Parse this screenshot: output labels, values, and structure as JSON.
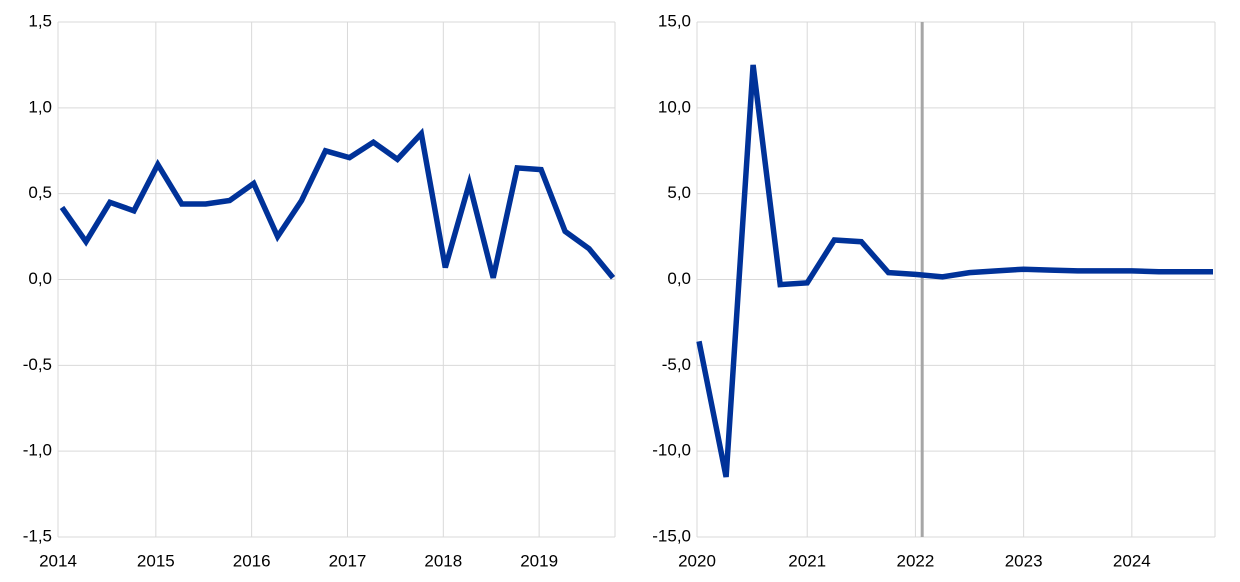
{
  "chart_data": [
    {
      "type": "line",
      "categories": [
        "2014",
        null,
        null,
        null,
        "2015",
        null,
        null,
        null,
        "2016",
        null,
        null,
        null,
        "2017",
        null,
        null,
        null,
        "2018",
        null,
        null,
        null,
        "2019",
        null,
        null,
        null
      ],
      "series": [
        {
          "color": "#003299",
          "values": [
            0.42,
            0.22,
            0.45,
            0.4,
            0.67,
            0.44,
            0.44,
            0.46,
            0.56,
            0.25,
            0.46,
            0.75,
            0.71,
            0.8,
            0.7,
            0.85,
            0.07,
            0.56,
            0.01,
            0.65,
            0.64,
            0.28,
            0.18,
            0.01
          ]
        }
      ],
      "ylim": [
        -1.5,
        1.5
      ],
      "yticks": [
        {
          "value": -1.5,
          "label": "-1,5"
        },
        {
          "value": -1.0,
          "label": "-1,0"
        },
        {
          "value": -0.5,
          "label": "-0,5"
        },
        {
          "value": 0,
          "label": "0,0"
        },
        {
          "value": 0.5,
          "label": "0,5"
        },
        {
          "value": 1.0,
          "label": "1,0"
        },
        {
          "value": 1.5,
          "label": "1,5"
        }
      ],
      "grid": true
    },
    {
      "type": "line",
      "categories": [
        "2020",
        null,
        null,
        null,
        "2021",
        null,
        null,
        null,
        "2022",
        null,
        null,
        null,
        "2023",
        null,
        null,
        null,
        "2024",
        null,
        null,
        null
      ],
      "series": [
        {
          "color": "#003299",
          "values": [
            -3.6,
            -11.5,
            12.5,
            -0.3,
            -0.2,
            2.3,
            2.2,
            0.4,
            0.3,
            0.15,
            0.4,
            0.5,
            0.6,
            0.55,
            0.5,
            0.5,
            0.5,
            0.45,
            0.45,
            0.45
          ]
        }
      ],
      "ylim": [
        -15,
        15
      ],
      "yticks": [
        {
          "value": -15,
          "label": "-15,0"
        },
        {
          "value": -10,
          "label": "-10,0"
        },
        {
          "value": -5,
          "label": "-5,0"
        },
        {
          "value": 0,
          "label": "0,0"
        },
        {
          "value": 5,
          "label": "5,0"
        },
        {
          "value": 10,
          "label": "10,0"
        },
        {
          "value": 15,
          "label": "15,0"
        }
      ],
      "grid": true
    }
  ]
}
